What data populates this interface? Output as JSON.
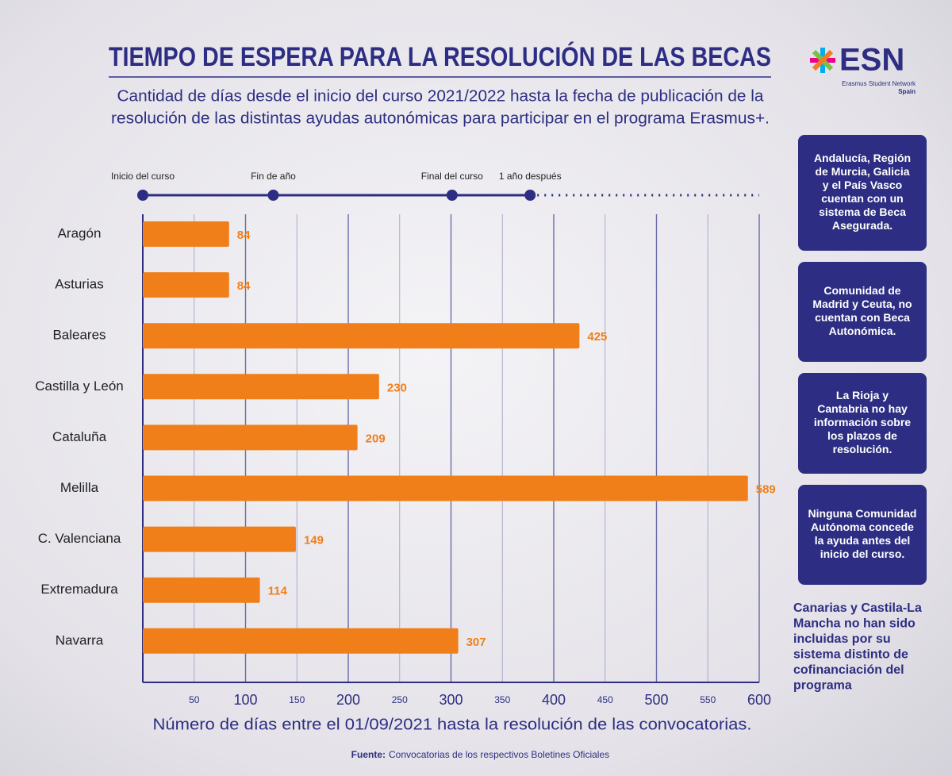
{
  "header": {
    "title": "TIEMPO DE ESPERA PARA LA RESOLUCIÓN DE LAS BECAS",
    "subtitle": [
      "Cantidad de días desde el inicio del curso 2021/2022 hasta la fecha de publicación de la",
      "resolución de las distintas ayudas autonómicas para participar en el programa Erasmus+."
    ]
  },
  "logo": {
    "name": "ESN",
    "tagline": "Erasmus Student Network",
    "country": "Spain"
  },
  "chart_data": {
    "type": "bar",
    "orientation": "horizontal",
    "categories": [
      "Aragón",
      "Asturias",
      "Baleares",
      "Castilla y León",
      "Cataluña",
      "Melilla",
      "C. Valenciana",
      "Extremadura",
      "Navarra"
    ],
    "values": [
      84,
      84,
      425,
      230,
      209,
      589,
      149,
      114,
      307
    ],
    "color": "#f07f1a",
    "xlim": [
      0,
      600
    ],
    "xticks": [
      50,
      100,
      150,
      200,
      250,
      300,
      350,
      400,
      450,
      500,
      550,
      600
    ],
    "grid": true,
    "xlabel": "Número de días entre el 01/09/2021 hasta la resolución de las convocatorias.",
    "timeline": [
      {
        "label": "Inicio del curso",
        "value": 0
      },
      {
        "label": "Fin de año",
        "value": 127
      },
      {
        "label": "Final del curso",
        "value": 301
      },
      {
        "label": "1 año después",
        "value": 377
      }
    ]
  },
  "notes": [
    [
      "Andalucía, Región",
      "de Murcia, Galicia",
      "y el País Vasco",
      "cuentan con un",
      "sistema de Beca",
      "Asegurada."
    ],
    [
      "Comunidad de",
      "Madrid y Ceuta, no",
      "cuentan con Beca",
      "Autonómica."
    ],
    [
      "La Rioja y",
      "Cantabria no hay",
      "información sobre",
      "los plazos de",
      "resolución."
    ],
    [
      "Ninguna Comunidad",
      "Autónoma concede",
      "la ayuda antes del",
      "inicio del curso."
    ]
  ],
  "footnote": [
    "Canarias y Castila-La",
    "Mancha no han sido",
    "incluidas por su",
    "sistema distinto de",
    "cofinanciación del",
    "programa"
  ],
  "source": {
    "label": "Fuente:",
    "text": "Convocatorias de los respectivos Boletines Oficiales"
  }
}
